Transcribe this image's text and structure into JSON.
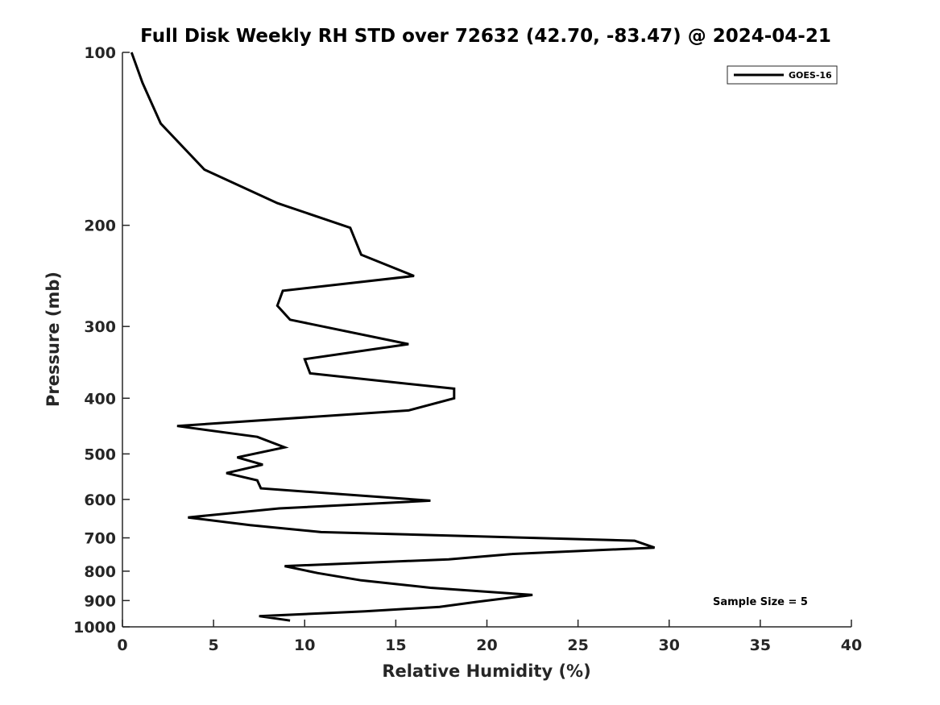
{
  "chart_data": {
    "type": "line",
    "title": "Full Disk Weekly RH STD over 72632 (42.70, -83.47) @ 2024-04-21",
    "xlabel": "Relative Humidity (%)",
    "ylabel": "Pressure (mb)",
    "xlim": [
      0,
      40
    ],
    "ylim": [
      1000,
      100
    ],
    "yscale": "log",
    "xticks": [
      0,
      5,
      10,
      15,
      20,
      25,
      30,
      35,
      40
    ],
    "xtick_labels": [
      "0",
      "5",
      "10",
      "15",
      "20",
      "25",
      "30",
      "35",
      "40"
    ],
    "yticks": [
      100,
      200,
      300,
      400,
      500,
      600,
      700,
      800,
      900,
      1000
    ],
    "ytick_labels": [
      "100",
      "200",
      "300",
      "400",
      "500",
      "600",
      "700",
      "800",
      "900",
      "1000"
    ],
    "grid": false,
    "legend_position": "top-right",
    "annotation": "Sample Size = 5",
    "series": [
      {
        "name": "GOES-16",
        "color": "#000000",
        "x": [
          0.5,
          1.1,
          2.1,
          4.5,
          8.5,
          12.5,
          13.1,
          16.0,
          8.8,
          8.5,
          9.2,
          15.7,
          10.0,
          10.3,
          18.2,
          18.2,
          15.7,
          3.0,
          7.4,
          8.9,
          6.3,
          7.7,
          5.7,
          7.4,
          7.6,
          16.9,
          8.6,
          3.6,
          7.0,
          10.9,
          28.1,
          29.2,
          21.3,
          17.9,
          8.9,
          10.7,
          13.1,
          16.9,
          22.5,
          19.4,
          17.4,
          13.3,
          7.5,
          9.2
        ],
        "y": [
          100,
          113,
          133,
          160,
          183,
          202,
          225,
          245,
          260,
          276,
          292,
          322,
          342,
          362,
          385,
          400,
          420,
          447,
          467,
          487,
          507,
          522,
          540,
          556,
          574,
          603,
          622,
          645,
          665,
          684,
          708,
          728,
          747,
          763,
          784,
          806,
          830,
          855,
          880,
          905,
          923,
          940,
          958,
          975
        ]
      }
    ]
  }
}
